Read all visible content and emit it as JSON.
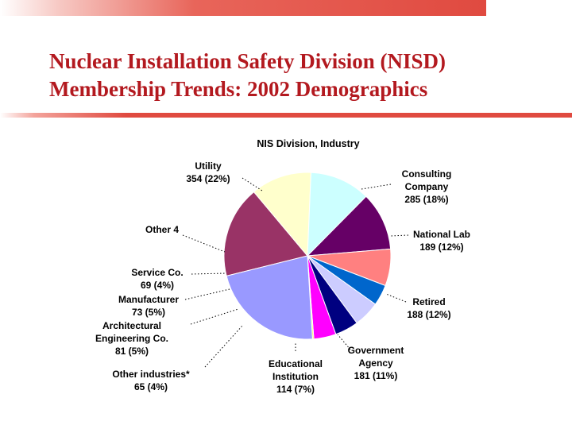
{
  "slide": {
    "title_line1": "Nuclear Installation Safety Division (NISD)",
    "title_line2": "Membership Trends: 2002 Demographics"
  },
  "chart_data": {
    "type": "pie",
    "title": "NIS Division, Industry",
    "slices": [
      {
        "label_lines": [
          "Consulting",
          "Company",
          "285 (18%)"
        ],
        "value": 285,
        "percent": 18,
        "color": "#993366"
      },
      {
        "label_lines": [
          "National Lab",
          "189 (12%)"
        ],
        "value": 189,
        "percent": 12,
        "color": "#ffffcc"
      },
      {
        "label_lines": [
          "Retired",
          "188 (12%)"
        ],
        "value": 188,
        "percent": 12,
        "color": "#ccffff"
      },
      {
        "label_lines": [
          "Government",
          "Agency",
          "181 (11%)"
        ],
        "value": 181,
        "percent": 11,
        "color": "#660066"
      },
      {
        "label_lines": [
          "Educational",
          "Institution",
          "114 (7%)"
        ],
        "value": 114,
        "percent": 7,
        "color": "#ff8080"
      },
      {
        "label_lines": [
          "Other industries*",
          "65 (4%)"
        ],
        "value": 65,
        "percent": 4,
        "color": "#0066cc"
      },
      {
        "label_lines": [
          "Architectural",
          "Engineering Co.",
          "81 (5%)"
        ],
        "value": 81,
        "percent": 5,
        "color": "#ccccff"
      },
      {
        "label_lines": [
          "Manufacturer",
          "73 (5%)"
        ],
        "value": 73,
        "percent": 5,
        "color": "#000080"
      },
      {
        "label_lines": [
          "Service Co.",
          "69 (4%)"
        ],
        "value": 69,
        "percent": 4,
        "color": "#ff00ff"
      },
      {
        "label_lines": [
          "Other 4"
        ],
        "value": 4,
        "percent": 0,
        "color": "#ffff00"
      },
      {
        "label_lines": [
          "Utility",
          "354 (22%)"
        ],
        "value": 354,
        "percent": 22,
        "color": "#9999ff"
      }
    ]
  }
}
